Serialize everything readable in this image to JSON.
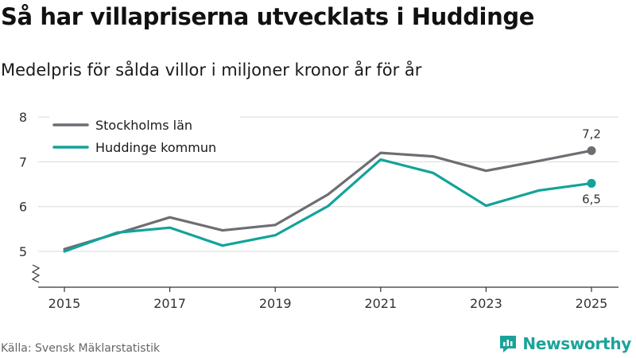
{
  "title": "Så har villapriserna utvecklats i Huddinge",
  "subtitle": "Medelpris för sålda villor i miljoner kronor år för år",
  "source": "Källa: Svensk Mäklarstatistik",
  "brand": "Newsworthy",
  "colors": {
    "stockholm": "#6e6d73",
    "huddinge": "#12a39a",
    "grid": "#d9d9d9",
    "axis": "#333333",
    "brand": "#1aa39a"
  },
  "chart_data": {
    "type": "line",
    "title": "Så har villapriserna utvecklats i Huddinge",
    "xlabel": "",
    "ylabel": "",
    "x": [
      2015,
      2016,
      2017,
      2018,
      2019,
      2020,
      2021,
      2022,
      2023,
      2024,
      2025
    ],
    "x_tick_labels": [
      "2015",
      "2017",
      "2019",
      "2021",
      "2023",
      "2025"
    ],
    "y_tick_labels": [
      "5",
      "6",
      "7",
      "8"
    ],
    "ylim": [
      4.25,
      8
    ],
    "axis_break": true,
    "grid": true,
    "legend_position": "top-left",
    "series": [
      {
        "name": "Stockholms län",
        "color": "#6e6d73",
        "values": [
          5.05,
          5.4,
          5.76,
          5.47,
          5.59,
          6.27,
          7.2,
          7.12,
          6.8,
          7.02,
          7.25
        ],
        "end_label": "7,2"
      },
      {
        "name": "Huddinge kommun",
        "color": "#12a39a",
        "values": [
          5.0,
          5.42,
          5.53,
          5.13,
          5.36,
          6.01,
          7.05,
          6.75,
          6.02,
          6.36,
          6.52
        ],
        "end_label": "6,5"
      }
    ]
  }
}
